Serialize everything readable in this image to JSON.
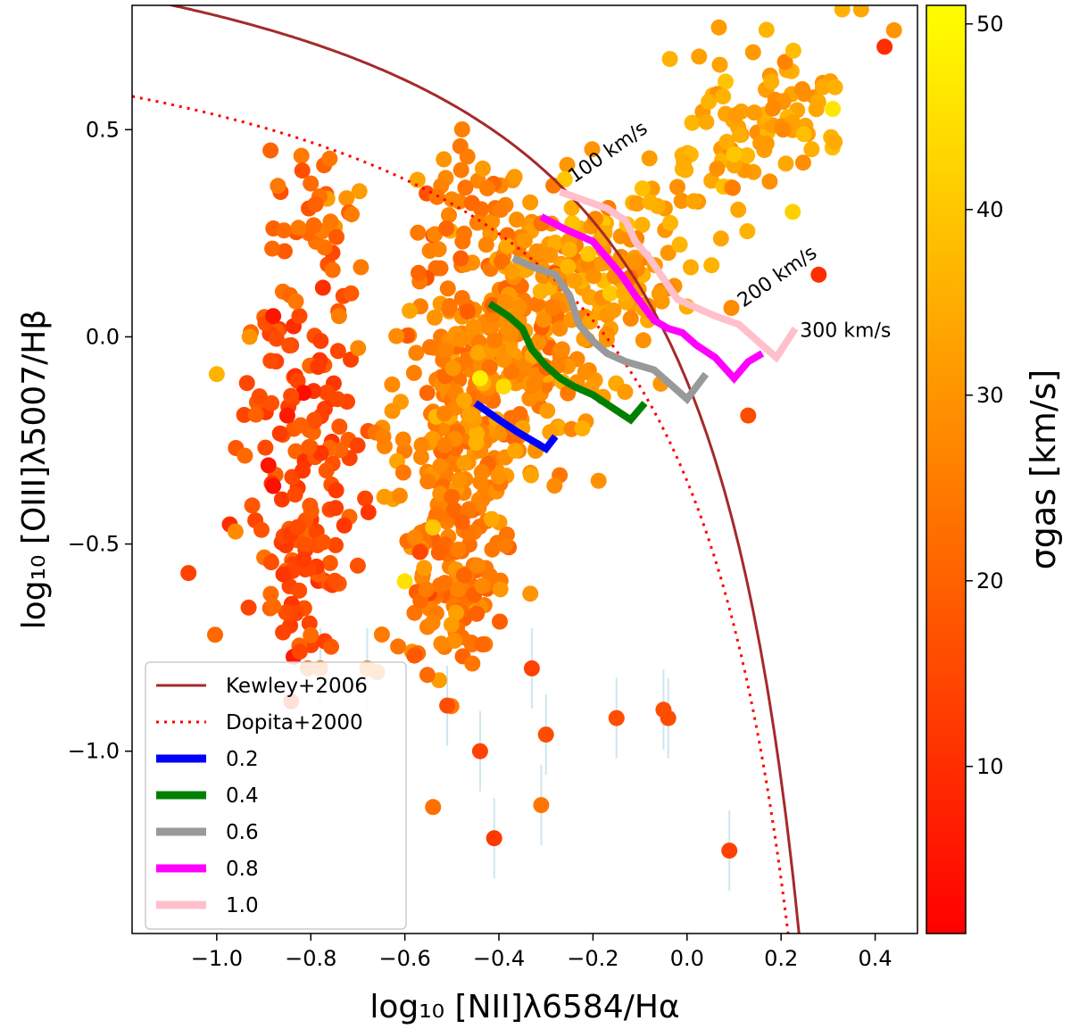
{
  "chart_data": {
    "type": "scatter",
    "title": "",
    "xlabel": "log₁₀ [NII]λ6584/Hα",
    "ylabel": "log₁₀ [OIII]λ5007/Hβ",
    "xlim": [
      -1.18,
      0.49
    ],
    "ylim": [
      -1.44,
      0.8
    ],
    "x_ticks": [
      -1.0,
      -0.8,
      -0.6,
      -0.4,
      -0.2,
      0.0,
      0.2,
      0.4
    ],
    "x_tick_labels": [
      "−1.0",
      "−0.8",
      "−0.6",
      "−0.4",
      "−0.2",
      "0.0",
      "0.2",
      "0.4"
    ],
    "y_ticks": [
      0.5,
      0.0,
      -0.5,
      -1.0
    ],
    "y_tick_labels": [
      "0.5",
      "0.0",
      "−0.5",
      "−1.0"
    ],
    "colorbar": {
      "label": "σgas [km/s]",
      "min": 1,
      "max": 51,
      "ticks": [
        10,
        20,
        30,
        40,
        50
      ],
      "tick_labels": [
        "10",
        "20",
        "30",
        "40",
        "50"
      ],
      "colormap": "autumn",
      "low_color": "#ff0000",
      "high_color": "#ffff00"
    },
    "demarcation_curves": [
      {
        "name": "Kewley+2006",
        "color": "#a52a2a",
        "style": "solid",
        "formula": "0.61/(x-0.47)+1.19"
      },
      {
        "name": "Dopita+2000",
        "color": "#ff0000",
        "style": "dotted",
        "formula": "0.61/(x-0.47)+1.19-0.24"
      }
    ],
    "shock_model_series": [
      {
        "name": "0.2",
        "color": "#0000ff",
        "x": [
          -0.45,
          -0.4,
          -0.36,
          -0.33,
          -0.3,
          -0.28
        ],
        "y": [
          -0.16,
          -0.2,
          -0.23,
          -0.25,
          -0.27,
          -0.24
        ]
      },
      {
        "name": "0.4",
        "color": "#008000",
        "x": [
          -0.42,
          -0.38,
          -0.35,
          -0.33,
          -0.3,
          -0.27,
          -0.24,
          -0.2,
          -0.16,
          -0.12,
          -0.09
        ],
        "y": [
          0.08,
          0.05,
          0.02,
          -0.03,
          -0.07,
          -0.1,
          -0.12,
          -0.14,
          -0.17,
          -0.2,
          -0.16
        ]
      },
      {
        "name": "0.6",
        "color": "#999999",
        "x": [
          -0.37,
          -0.33,
          -0.28,
          -0.25,
          -0.23,
          -0.2,
          -0.17,
          -0.13,
          -0.1,
          -0.07,
          -0.03,
          0.0,
          0.04
        ],
        "y": [
          0.19,
          0.17,
          0.15,
          0.1,
          0.03,
          -0.01,
          -0.04,
          -0.06,
          -0.07,
          -0.08,
          -0.12,
          -0.15,
          -0.09
        ]
      },
      {
        "name": "0.8",
        "color": "#ff00ff",
        "x": [
          -0.31,
          -0.26,
          -0.2,
          -0.17,
          -0.14,
          -0.11,
          -0.09,
          -0.07,
          -0.04,
          -0.01,
          0.02,
          0.06,
          0.1,
          0.13,
          0.16
        ],
        "y": [
          0.29,
          0.26,
          0.23,
          0.19,
          0.15,
          0.1,
          0.07,
          0.04,
          0.02,
          0.01,
          -0.02,
          -0.05,
          -0.1,
          -0.06,
          -0.04
        ]
      },
      {
        "name": "1.0",
        "color": "#ffc0cb",
        "x": [
          -0.27,
          -0.22,
          -0.17,
          -0.13,
          -0.11,
          -0.08,
          -0.05,
          -0.02,
          0.02,
          0.06,
          0.11,
          0.15,
          0.19,
          0.23
        ],
        "y": [
          0.35,
          0.33,
          0.31,
          0.28,
          0.23,
          0.19,
          0.14,
          0.09,
          0.07,
          0.05,
          0.03,
          -0.01,
          -0.05,
          0.02
        ]
      }
    ],
    "velocity_annotations": [
      {
        "text": "100 km/s",
        "x": -0.24,
        "y": 0.37,
        "angle": -35
      },
      {
        "text": "200 km/s",
        "x": 0.12,
        "y": 0.07,
        "angle": -35
      },
      {
        "text": "300 km/s",
        "x": 0.24,
        "y": 0.0,
        "angle": 0
      }
    ],
    "legend": {
      "position": "lower-left",
      "entries": [
        "Kewley+2006",
        "Dopita+2000",
        "0.2",
        "0.4",
        "0.6",
        "0.8",
        "1.0"
      ]
    },
    "points_outliers": [
      [
        -1.06,
        -0.57,
        14
      ],
      [
        -0.89,
        -0.31,
        5
      ],
      [
        -0.88,
        -0.36,
        4
      ],
      [
        -0.88,
        0.05,
        5
      ],
      [
        -0.85,
        -0.19,
        6
      ],
      [
        -0.8,
        0.37,
        22
      ],
      [
        -0.79,
        0.32,
        20
      ],
      [
        -0.76,
        0.43,
        24
      ],
      [
        -0.96,
        -0.47,
        28
      ],
      [
        -0.93,
        -0.0,
        30
      ],
      [
        -1.0,
        -0.09,
        36
      ],
      [
        -0.88,
        -0.65,
        22
      ],
      [
        -0.74,
        0.05,
        26
      ],
      [
        -0.8,
        -0.72,
        22
      ],
      [
        -0.78,
        -0.8,
        24
      ],
      [
        -0.68,
        -0.8,
        26
      ],
      [
        -0.6,
        -0.59,
        45
      ],
      [
        -0.54,
        -0.46,
        40
      ],
      [
        -0.39,
        -0.12,
        44
      ],
      [
        -0.44,
        -0.1,
        48
      ],
      [
        -0.33,
        -0.8,
        14
      ],
      [
        -0.51,
        -0.89,
        16
      ],
      [
        -0.44,
        -1.0,
        14
      ],
      [
        -0.41,
        -1.21,
        12
      ],
      [
        -0.31,
        -1.13,
        24
      ],
      [
        -0.3,
        -0.96,
        16
      ],
      [
        -0.15,
        -0.92,
        16
      ],
      [
        -0.05,
        -0.9,
        16
      ],
      [
        -0.04,
        -0.92,
        16
      ],
      [
        0.09,
        -1.24,
        14
      ],
      [
        0.28,
        0.15,
        10
      ],
      [
        0.42,
        0.7,
        10
      ],
      [
        0.44,
        0.74,
        30
      ],
      [
        0.37,
        0.79,
        34
      ],
      [
        0.33,
        0.79,
        36
      ],
      [
        0.31,
        0.55,
        46
      ],
      [
        0.13,
        -0.19,
        16
      ],
      [
        -0.26,
        0.38,
        40
      ],
      [
        -0.21,
        0.2,
        40
      ],
      [
        0.1,
        0.44,
        40
      ]
    ],
    "cluster_regions": [
      {
        "name": "left-branch",
        "cx": -0.82,
        "cy": -0.25,
        "sx": 0.07,
        "sy": 0.24,
        "n": 120,
        "sigma_mean": 16
      },
      {
        "name": "left-top",
        "cx": -0.78,
        "cy": 0.27,
        "sx": 0.05,
        "sy": 0.08,
        "n": 30,
        "sigma_mean": 22
      },
      {
        "name": "left-bottom",
        "cx": -0.8,
        "cy": -0.58,
        "sx": 0.06,
        "sy": 0.09,
        "n": 40,
        "sigma_mean": 16
      },
      {
        "name": "central",
        "cx": -0.5,
        "cy": -0.25,
        "sx": 0.07,
        "sy": 0.22,
        "n": 220,
        "sigma_mean": 26
      },
      {
        "name": "central-lower",
        "cx": -0.5,
        "cy": -0.6,
        "sx": 0.06,
        "sy": 0.1,
        "n": 70,
        "sigma_mean": 24
      },
      {
        "name": "middle",
        "cx": -0.35,
        "cy": 0.0,
        "sx": 0.08,
        "sy": 0.16,
        "n": 230,
        "sigma_mean": 28
      },
      {
        "name": "upper-mid",
        "cx": -0.45,
        "cy": 0.28,
        "sx": 0.07,
        "sy": 0.1,
        "n": 50,
        "sigma_mean": 27
      },
      {
        "name": "right-branch",
        "cx": -0.15,
        "cy": 0.15,
        "sx": 0.09,
        "sy": 0.11,
        "n": 100,
        "sigma_mean": 31
      },
      {
        "name": "upper-right",
        "cx": 0.1,
        "cy": 0.45,
        "sx": 0.08,
        "sy": 0.1,
        "n": 70,
        "sigma_mean": 33
      },
      {
        "name": "top-right",
        "cx": 0.22,
        "cy": 0.58,
        "sx": 0.05,
        "sy": 0.06,
        "n": 30,
        "sigma_mean": 33
      }
    ]
  }
}
